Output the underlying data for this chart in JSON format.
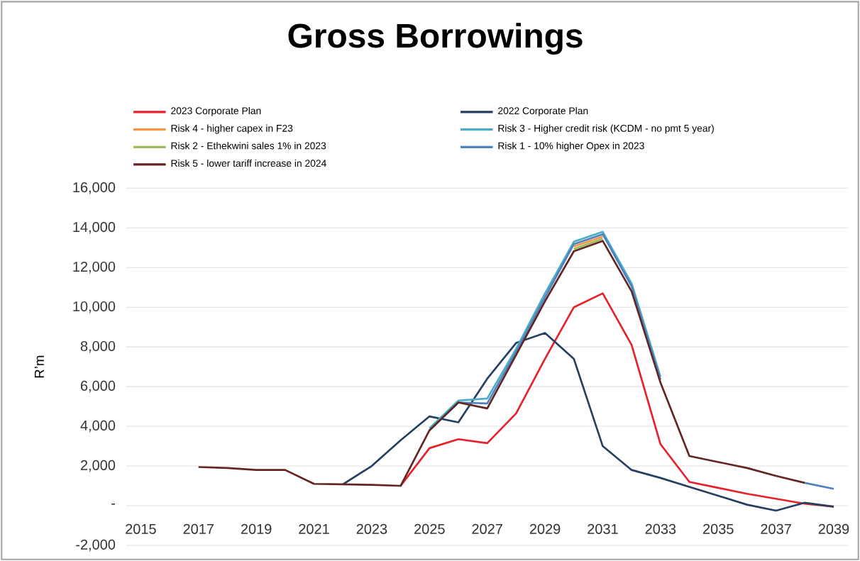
{
  "chart_data": {
    "type": "line",
    "title": "Gross Borrowings",
    "ylabel": "R’m",
    "x": [
      2017,
      2018,
      2019,
      2020,
      2021,
      2022,
      2023,
      2024,
      2025,
      2026,
      2027,
      2028,
      2029,
      2030,
      2031,
      2032,
      2033,
      2034,
      2035,
      2036,
      2037,
      2038,
      2039
    ],
    "series": [
      {
        "name": "2023 Corporate Plan",
        "color": "#e8202a",
        "values": [
          null,
          null,
          null,
          null,
          null,
          null,
          null,
          1000,
          2900,
          3350,
          3150,
          4650,
          7400,
          10000,
          10700,
          8100,
          3100,
          1200,
          900,
          600,
          350,
          100,
          -50
        ]
      },
      {
        "name": "2022 Corporate Plan",
        "color": "#243f60",
        "values": [
          null,
          null,
          null,
          null,
          null,
          1080,
          2000,
          3300,
          4500,
          4200,
          6400,
          8200,
          8700,
          7400,
          3000,
          1800,
          1400,
          950,
          500,
          50,
          -250,
          150,
          -50
        ]
      },
      {
        "name": "Risk 4 - higher capex  in F23",
        "color": "#f79646",
        "values": [
          null,
          null,
          null,
          null,
          null,
          null,
          null,
          null,
          null,
          null,
          null,
          null,
          null,
          13060,
          13560,
          null,
          null,
          null,
          null,
          null,
          null,
          null,
          null
        ]
      },
      {
        "name": "Risk 3 - Higher credit risk (KCDM - no pmt 5 year)",
        "color": "#4bacc6",
        "values": [
          null,
          null,
          null,
          null,
          null,
          null,
          null,
          null,
          3900,
          5300,
          5400,
          7900,
          10700,
          13300,
          13800,
          11200,
          6500,
          null,
          null,
          null,
          null,
          null,
          null
        ]
      },
      {
        "name": "Risk 2 - Ethekwini sales 1% in 2023",
        "color": "#9bbb59",
        "values": [
          null,
          null,
          null,
          null,
          null,
          null,
          null,
          null,
          null,
          null,
          null,
          null,
          null,
          12940,
          13450,
          null,
          null,
          null,
          null,
          null,
          null,
          null,
          null
        ]
      },
      {
        "name": "Risk 1 - 10% higher Opex in 2023",
        "color": "#4f81bd",
        "values": [
          null,
          null,
          null,
          null,
          null,
          null,
          null,
          null,
          3800,
          5200,
          5150,
          7750,
          10500,
          13180,
          13680,
          11050,
          6350,
          null,
          null,
          null,
          null,
          1150,
          850
        ]
      },
      {
        "name": "Risk 5 - lower tariff increase in 2024",
        "color": "#632523",
        "values": [
          1950,
          1900,
          1800,
          1800,
          1100,
          1080,
          1050,
          1000,
          3800,
          5200,
          4900,
          7600,
          10300,
          12820,
          13340,
          10800,
          6200,
          2500,
          2200,
          1900,
          1500,
          1150,
          null
        ]
      }
    ],
    "xlim": [
      2014.5,
      2039.5
    ],
    "xticks": [
      2015,
      2017,
      2019,
      2021,
      2023,
      2025,
      2027,
      2029,
      2031,
      2033,
      2035,
      2037,
      2039
    ],
    "ylim": [
      -2000,
      16000
    ],
    "yticks": [
      {
        "value": -2000,
        "label": "-2,000"
      },
      {
        "value": 0,
        "label": "-"
      },
      {
        "value": 2000,
        "label": "2,000"
      },
      {
        "value": 4000,
        "label": "4,000"
      },
      {
        "value": 6000,
        "label": "6,000"
      },
      {
        "value": 8000,
        "label": "8,000"
      },
      {
        "value": 10000,
        "label": "10,000"
      },
      {
        "value": 12000,
        "label": "12,000"
      },
      {
        "value": 14000,
        "label": "14,000"
      },
      {
        "value": 16000,
        "label": "16,000"
      }
    ],
    "grid": "y",
    "legend": "top",
    "marker": "none",
    "line_style": "solid"
  }
}
